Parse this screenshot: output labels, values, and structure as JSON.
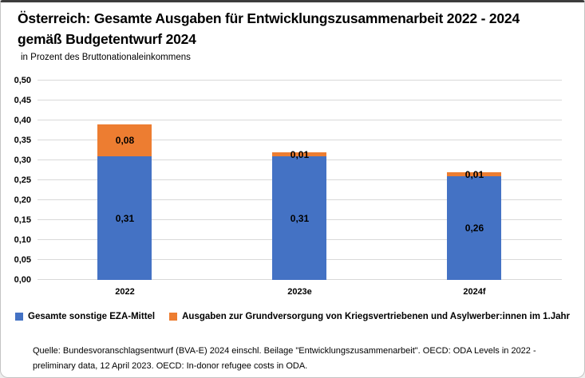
{
  "header": {
    "title_lines": [
      "Österreich: Gesamte Ausgaben für Entwicklungszusammenarbeit 2022 - 2024",
      "gemäß Budgetentwurf 2024"
    ],
    "subtitle": "in Prozent des Bruttonationaleinkommens"
  },
  "chart_data": {
    "type": "bar",
    "stacked": true,
    "title": "Österreich: Gesamte Ausgaben für Entwicklungszusammenarbeit 2022 - 2024 gemäß Budgetentwurf 2024",
    "subtitle": "in Prozent des Bruttonationaleinkommens",
    "categories": [
      "2022",
      "2023e",
      "2024f"
    ],
    "series": [
      {
        "name": "Gesamte sonstige EZA-Mittel",
        "color": "#4472C4",
        "values": [
          0.31,
          0.31,
          0.26
        ],
        "labels": [
          "0,31",
          "0,31",
          "0,26"
        ]
      },
      {
        "name": "Ausgaben zur Grundversorgung von Kriegsvertriebenen und Asylwerber:innen im 1.Jahr",
        "color": "#ED7D31",
        "values": [
          0.08,
          0.01,
          0.01
        ],
        "labels": [
          "0,08",
          "0,01",
          "0,01"
        ]
      }
    ],
    "ylim": [
      0,
      0.5
    ],
    "ytick_step": 0.05,
    "ytick_labels": [
      "0,00",
      "0,05",
      "0,10",
      "0,15",
      "0,20",
      "0,25",
      "0,30",
      "0,35",
      "0,40",
      "0,45",
      "0,50"
    ],
    "grid": true,
    "legend_position": "bottom",
    "gridline_color": "#d9d9d9"
  },
  "footer": {
    "lines": [
      "Quelle: Bundesvoranschlagsentwurf (BVA-E) 2024 einschl. Beilage \"Entwicklungszusammenarbeit\". OECD: ODA Levels in 2022 -",
      "preliminary data, 12 April 2023. OECD: In-donor  refugee costs in ODA."
    ]
  },
  "colors": {
    "series_blue": "#4472C4",
    "series_orange": "#ED7D31",
    "gridline": "#d9d9d9",
    "frame_top_border": "#3d3d3d"
  }
}
